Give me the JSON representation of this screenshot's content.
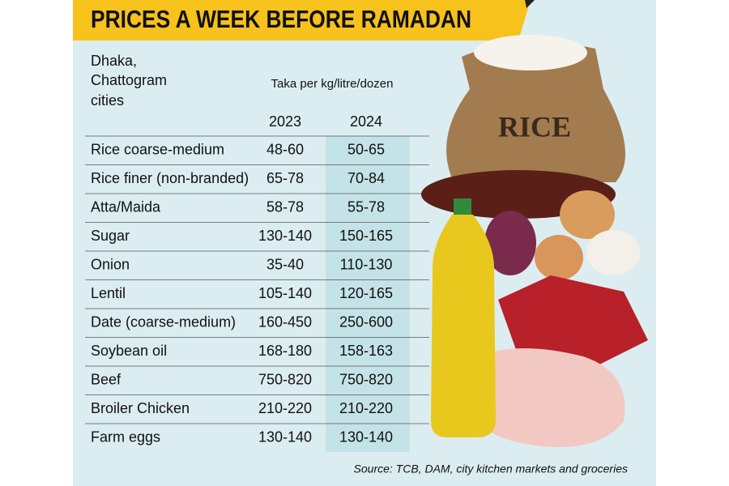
{
  "header": {
    "title": "PRICES A WEEK BEFORE RAMADAN"
  },
  "table": {
    "region": [
      "Dhaka,",
      "Chattogram",
      "cities"
    ],
    "unit": "Taka per kg/litre/dozen",
    "columns": [
      "2023",
      "2024"
    ],
    "rows": [
      [
        "Rice coarse-medium",
        "48-60",
        "50-65"
      ],
      [
        "Rice finer (non-branded)",
        "65-78",
        "70-84"
      ],
      [
        "Atta/Maida",
        "58-78",
        "55-78"
      ],
      [
        "Sugar",
        "130-140",
        "150-165"
      ],
      [
        "Onion",
        "35-40",
        "110-130"
      ],
      [
        "Lentil",
        "105-140",
        "120-165"
      ],
      [
        "Date (coarse-medium)",
        "160-450",
        "250-600"
      ],
      [
        "Soybean oil",
        "168-180",
        "158-163"
      ],
      [
        "Beef",
        "750-820",
        "750-820"
      ],
      [
        "Broiler Chicken",
        "210-220",
        "210-220"
      ],
      [
        "Farm eggs",
        "130-140",
        "130-140"
      ]
    ]
  },
  "illustration": {
    "sack_label": "RICE"
  },
  "footer": {
    "source": "Source: TCB, DAM, city kitchen markets and groceries"
  }
}
